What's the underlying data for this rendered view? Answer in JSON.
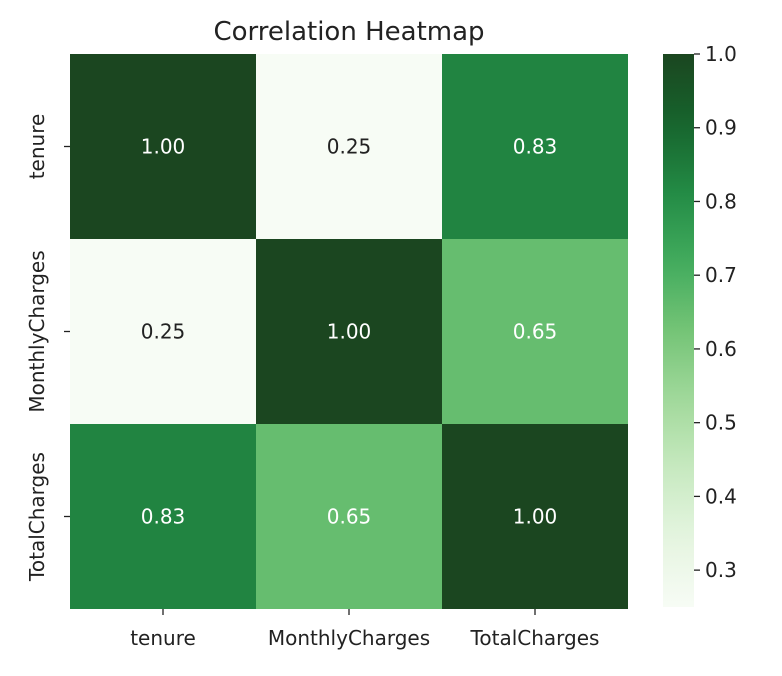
{
  "chart_data": {
    "type": "heatmap",
    "title": "Correlation Heatmap",
    "xlabel": "",
    "ylabel": "",
    "x_categories": [
      "tenure",
      "MonthlyCharges",
      "TotalCharges"
    ],
    "y_categories": [
      "tenure",
      "MonthlyCharges",
      "TotalCharges"
    ],
    "values": [
      [
        1.0,
        0.25,
        0.83
      ],
      [
        0.25,
        1.0,
        0.65
      ],
      [
        0.83,
        0.65,
        1.0
      ]
    ],
    "value_format": "0.00",
    "colormap": "Greens",
    "colorbar": {
      "range": [
        0.25,
        1.0
      ],
      "ticks": [
        0.3,
        0.4,
        0.5,
        0.6,
        0.7,
        0.8,
        0.9,
        1.0
      ],
      "tick_labels": [
        "0.3",
        "0.4",
        "0.5",
        "0.6",
        "0.7",
        "0.8",
        "0.9",
        "1.0"
      ]
    },
    "colors": {
      "low": "#f7fcf5",
      "high": "#1b4620",
      "text_dark": "#222222",
      "text_light": "#ffffff"
    }
  }
}
